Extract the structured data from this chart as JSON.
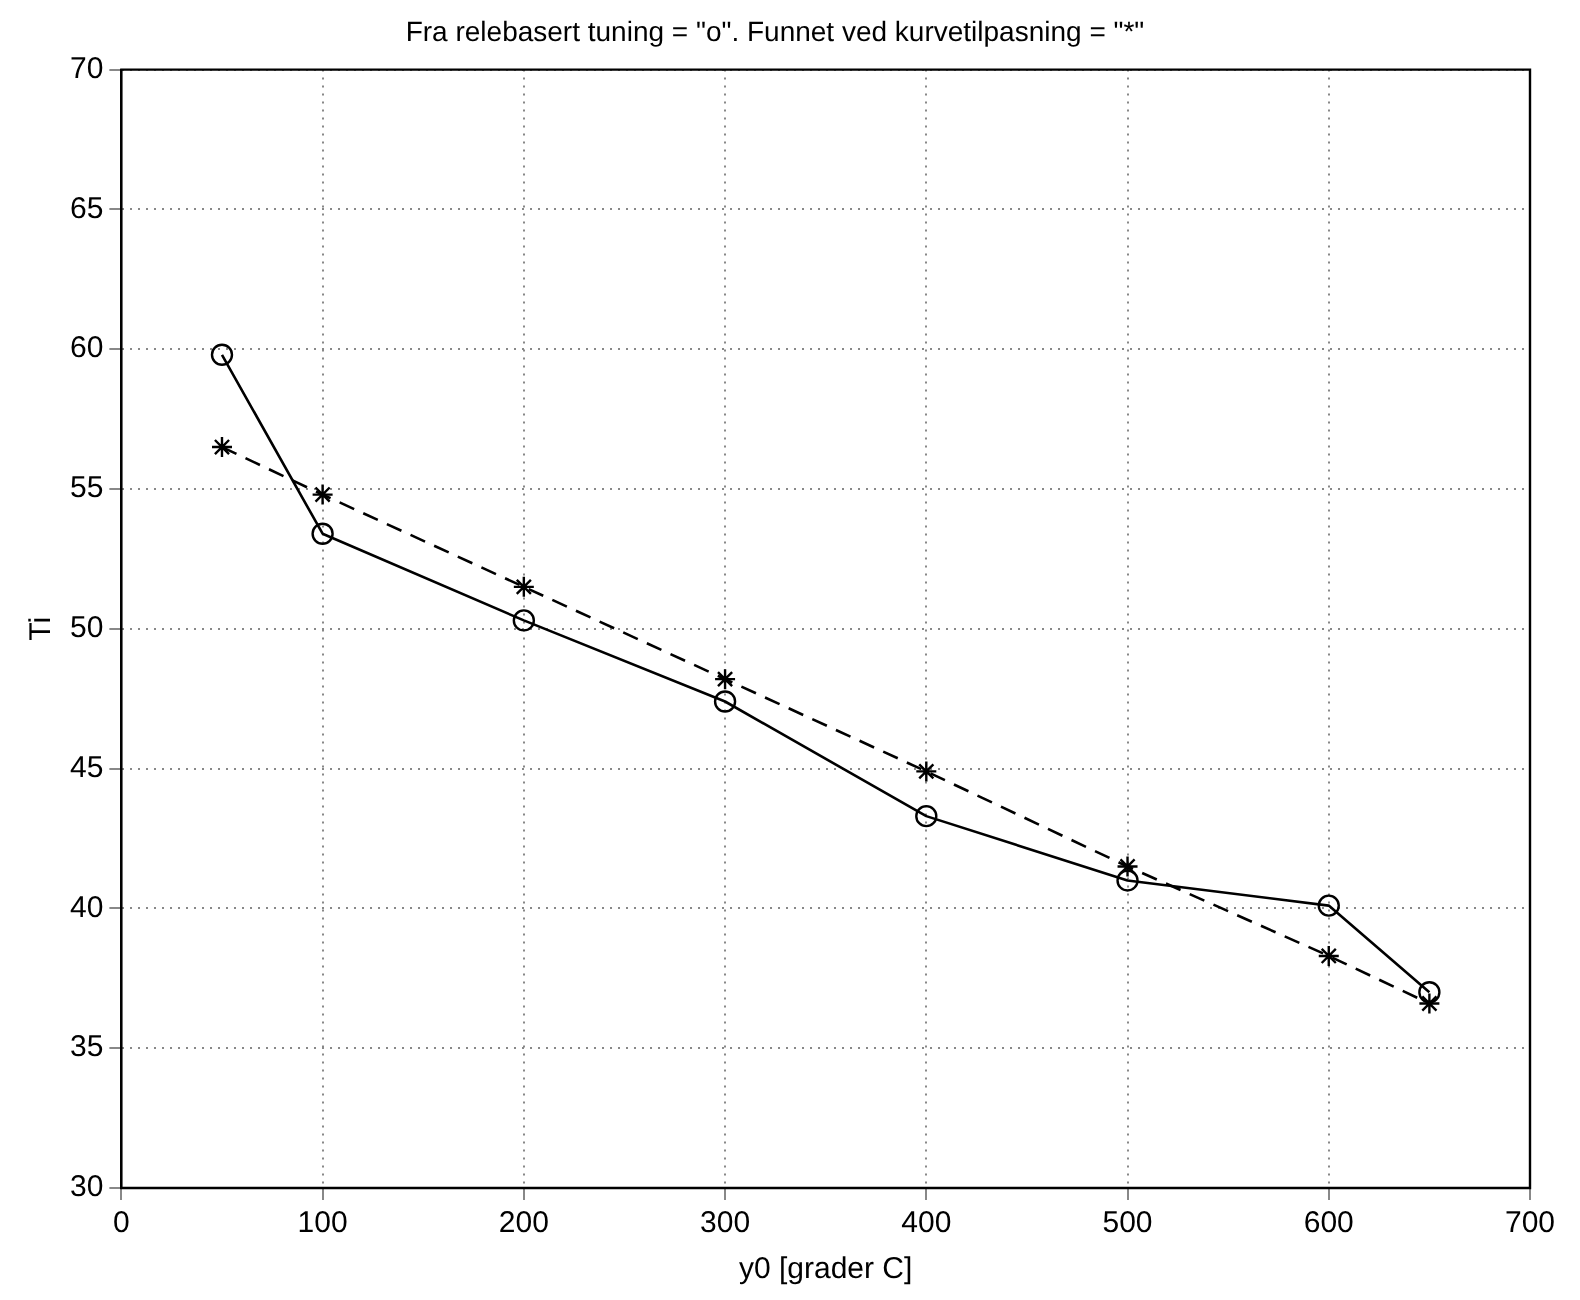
{
  "chart_data": {
    "type": "line",
    "title": "Fra relebasert tuning = \"o\". Funnet ved kurvetilpasning = \"*\"",
    "xlabel": "y0 [grader C]",
    "ylabel": "Ti",
    "x": [
      50,
      100,
      200,
      300,
      400,
      500,
      600,
      650
    ],
    "series": [
      {
        "color": "#000000",
        "marker": "circle",
        "line_style": "solid",
        "values": [
          59.8,
          53.4,
          50.3,
          47.4,
          43.3,
          41.0,
          40.1,
          37.0
        ]
      },
      {
        "color": "#000000",
        "marker": "cross",
        "line_style": "dashed",
        "values": [
          56.5,
          54.8,
          51.5,
          48.2,
          44.9,
          41.5,
          38.3,
          36.6
        ]
      }
    ],
    "xlim": [
      0,
      700
    ],
    "xticks": [
      0,
      100,
      200,
      300,
      400,
      500,
      600,
      700
    ],
    "ylim": [
      30,
      70
    ],
    "yticks": [
      30,
      35,
      40,
      45,
      50,
      55,
      60,
      65,
      70
    ],
    "grid": true,
    "legend": false
  }
}
